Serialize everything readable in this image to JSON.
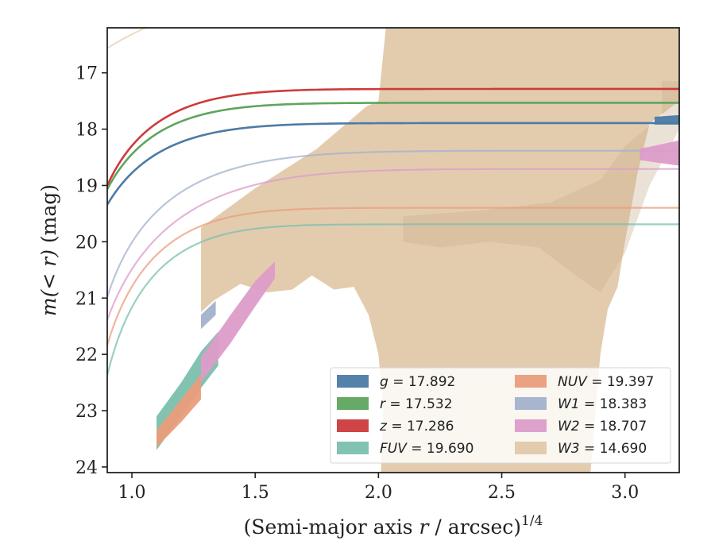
{
  "chart_data": {
    "type": "line",
    "xlabel_main": "(Semi-major axis ",
    "xlabel_var": "r",
    "xlabel_tail": " / arcsec)",
    "xlabel_sup": "1/4",
    "ylabel_main": "m(< r)",
    "ylabel_unit": " (mag)",
    "xlim": [
      0.9,
      3.22
    ],
    "ylim": [
      24.1,
      16.2
    ],
    "y_inverted": true,
    "xticks": [
      {
        "value": 1.0,
        "label": "1.0"
      },
      {
        "value": 1.5,
        "label": "1.5"
      },
      {
        "value": 2.0,
        "label": "2.0"
      },
      {
        "value": 2.5,
        "label": "2.5"
      },
      {
        "value": 3.0,
        "label": "3.0"
      }
    ],
    "yticks": [
      {
        "value": 17,
        "label": "17"
      },
      {
        "value": 18,
        "label": "18"
      },
      {
        "value": 19,
        "label": "19"
      },
      {
        "value": 20,
        "label": "20"
      },
      {
        "value": 21,
        "label": "21"
      },
      {
        "value": 22,
        "label": "22"
      },
      {
        "value": 23,
        "label": "23"
      },
      {
        "value": 24,
        "label": "24"
      }
    ],
    "grid": false,
    "legend_position": "lower-right",
    "legend_columns": 2,
    "series": [
      {
        "band": "g",
        "legend_label": "= 17.892",
        "color": "#4c7ba6",
        "line_opacity": 1,
        "mag_tot": 17.892,
        "x0": 0.7,
        "scale": 0.42,
        "power": 1.6,
        "band_points": [
          [
            3.12,
            17.92,
            17.78
          ],
          [
            3.22,
            17.92,
            17.75
          ]
        ]
      },
      {
        "band": "r",
        "legend_label": "= 17.532",
        "color": "#5fa55f",
        "line_opacity": 1,
        "mag_tot": 17.532,
        "x0": 0.72,
        "scale": 0.4,
        "power": 1.6,
        "band_points": []
      },
      {
        "band": "z",
        "legend_label": "= 17.286",
        "color": "#cc3b3b",
        "line_opacity": 1,
        "mag_tot": 17.286,
        "x0": 0.74,
        "scale": 0.4,
        "power": 1.6,
        "band_points": []
      },
      {
        "band": "FUV",
        "legend_label": "= 19.690",
        "color": "#7bbfad",
        "line_opacity": 0.75,
        "mag_tot": 19.69,
        "x0": 0.8,
        "scale": 0.4,
        "power": 1.75,
        "band_points": [
          [
            1.1,
            23.7,
            23.1
          ],
          [
            1.2,
            23.1,
            22.5
          ],
          [
            1.28,
            22.6,
            21.95
          ],
          [
            1.35,
            22.2,
            21.6
          ]
        ]
      },
      {
        "band": "NUV",
        "legend_label": "= 19.397",
        "color": "#ea9d7b",
        "line_opacity": 0.75,
        "mag_tot": 19.397,
        "x0": 0.78,
        "scale": 0.42,
        "power": 1.75,
        "band_points": [
          [
            1.1,
            23.65,
            23.35
          ],
          [
            1.2,
            23.2,
            22.8
          ],
          [
            1.28,
            22.8,
            22.35
          ]
        ]
      },
      {
        "band": "W1",
        "legend_label": "= 18.383",
        "color": "#a3b1cc",
        "line_opacity": 0.75,
        "mag_tot": 18.383,
        "x0": 0.78,
        "scale": 0.52,
        "power": 1.6,
        "band_points": [
          [
            1.28,
            21.55,
            21.3
          ],
          [
            1.34,
            21.3,
            21.05
          ]
        ]
      },
      {
        "band": "W2",
        "legend_label": "= 18.707",
        "color": "#dc9cc9",
        "line_opacity": 0.75,
        "mag_tot": 18.707,
        "x0": 0.75,
        "scale": 0.6,
        "power": 1.75,
        "band_points": [
          [
            1.28,
            22.5,
            22.05
          ],
          [
            1.4,
            21.8,
            21.3
          ],
          [
            1.5,
            21.15,
            20.7
          ],
          [
            1.58,
            20.65,
            20.35
          ]
        ],
        "band2_points": [
          [
            3.06,
            18.55,
            18.35
          ],
          [
            3.22,
            18.65,
            18.2
          ]
        ]
      },
      {
        "band": "W3",
        "legend_label": "= 14.690",
        "color": "#e0c6a5",
        "line_opacity": 0.6,
        "mag_tot": 14.69,
        "x0": 0.4,
        "scale": 1.6,
        "power": 1.4,
        "fill_polygon": [
          [
            1.28,
            19.75
          ],
          [
            1.5,
            19.05
          ],
          [
            1.75,
            18.35
          ],
          [
            1.95,
            17.6
          ],
          [
            2.0,
            17.5
          ],
          [
            2.03,
            16.2
          ],
          [
            3.22,
            16.2
          ],
          [
            3.22,
            17.5
          ],
          [
            3.1,
            17.9
          ],
          [
            3.05,
            18.8
          ],
          [
            3.0,
            20.0
          ],
          [
            2.97,
            20.8
          ],
          [
            2.93,
            21.2
          ],
          [
            2.9,
            22.0
          ],
          [
            2.88,
            23.0
          ],
          [
            2.86,
            24.1
          ],
          [
            2.01,
            24.1
          ],
          [
            2.02,
            23.0
          ],
          [
            2.0,
            22.0
          ],
          [
            1.96,
            21.3
          ],
          [
            1.9,
            20.8
          ],
          [
            1.82,
            20.85
          ],
          [
            1.73,
            20.6
          ],
          [
            1.65,
            20.85
          ],
          [
            1.55,
            20.9
          ],
          [
            1.44,
            20.75
          ],
          [
            1.33,
            21.05
          ],
          [
            1.28,
            21.25
          ]
        ],
        "darker_polygon": [
          [
            2.1,
            19.55
          ],
          [
            2.4,
            19.45
          ],
          [
            2.7,
            19.3
          ],
          [
            2.9,
            18.9
          ],
          [
            3.0,
            18.3
          ],
          [
            3.15,
            17.75
          ],
          [
            3.15,
            17.15
          ],
          [
            3.22,
            17.15
          ],
          [
            3.22,
            18.0
          ],
          [
            3.1,
            19.0
          ],
          [
            3.0,
            20.2
          ],
          [
            2.9,
            20.9
          ],
          [
            2.8,
            20.6
          ],
          [
            2.65,
            20.1
          ],
          [
            2.45,
            20.0
          ],
          [
            2.25,
            20.1
          ],
          [
            2.1,
            20.0
          ]
        ]
      }
    ]
  }
}
